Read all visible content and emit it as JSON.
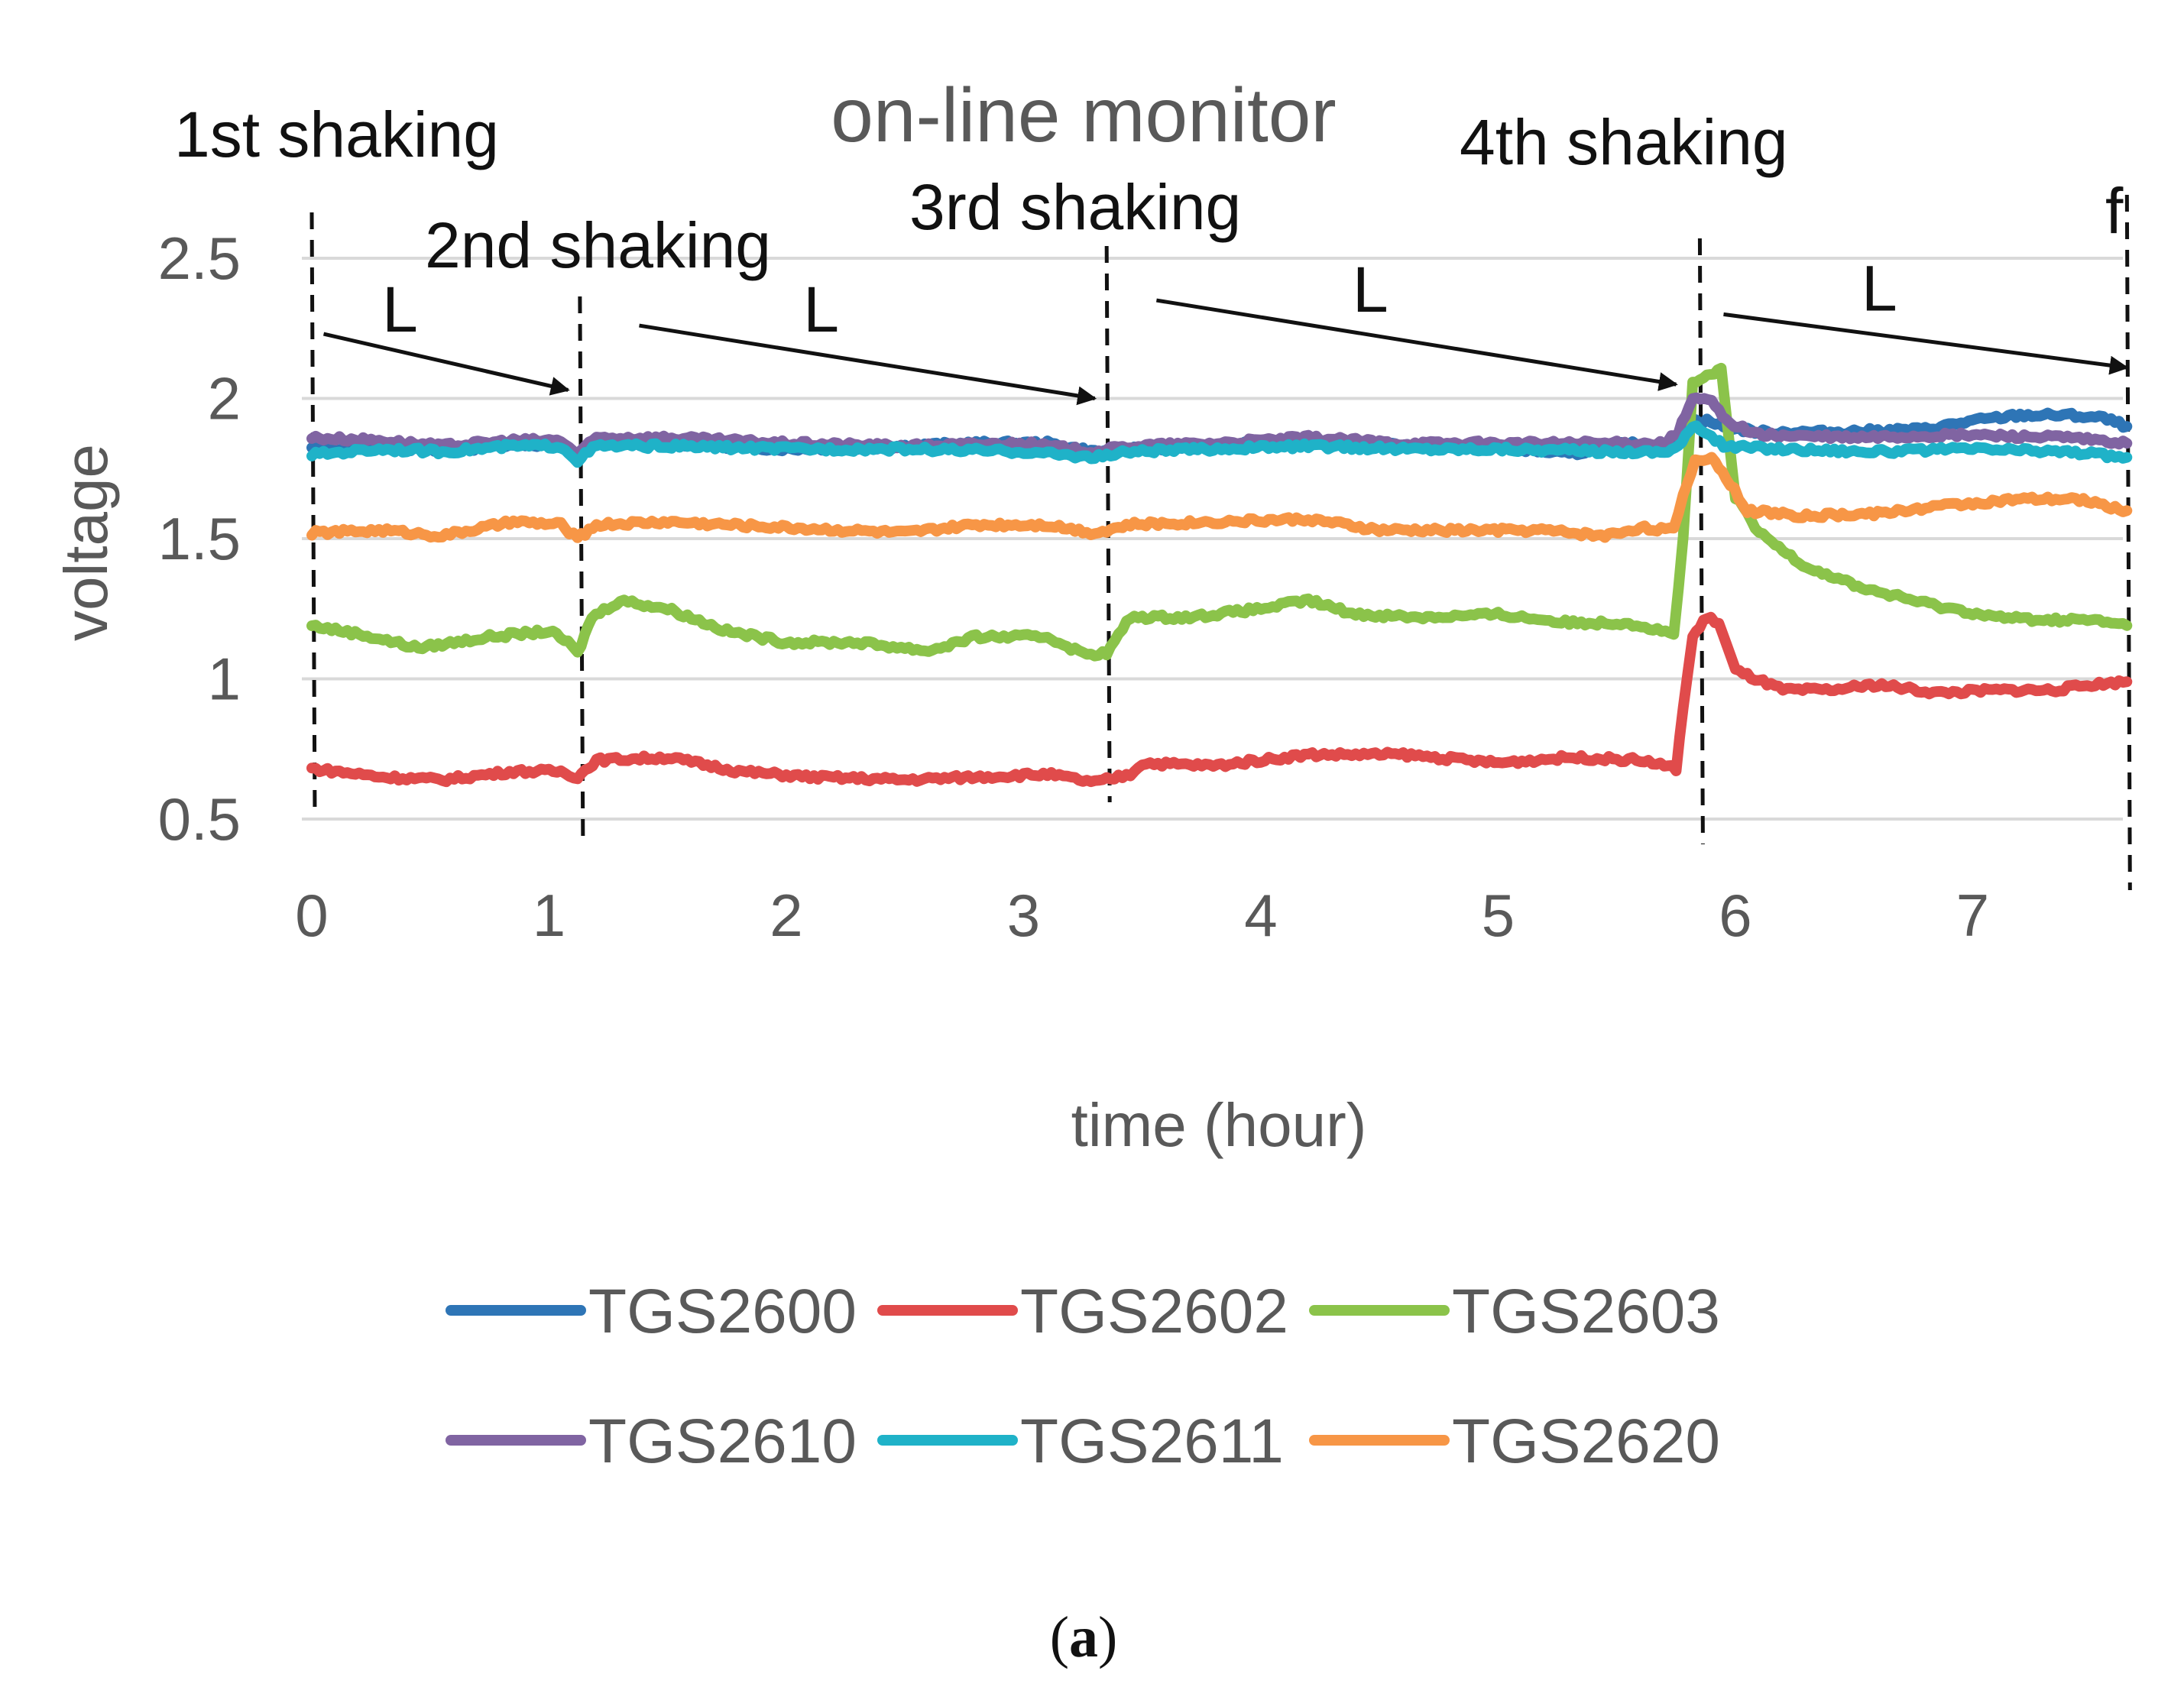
{
  "chart_data": {
    "type": "line",
    "title": "on-line monitor",
    "xlabel": "time (hour)",
    "ylabel": "voltage",
    "xlim": [
      0,
      7.65
    ],
    "ylim": [
      0.5,
      2.5
    ],
    "x_ticks": [
      "0",
      "1",
      "2",
      "3",
      "4",
      "5",
      "6",
      "7"
    ],
    "y_ticks": [
      "0.5",
      "1",
      "1.5",
      "2",
      "2.5"
    ],
    "y_tick_values": [
      0.5,
      1,
      1.5,
      2,
      2.5
    ],
    "x_tick_values": [
      0,
      1,
      2,
      3,
      4,
      5,
      6,
      7
    ],
    "grid": true,
    "legend_position": "bottom",
    "caption": "(a)",
    "caption_inner": "a",
    "shakings": [
      {
        "label": "1st shaking",
        "time": 0
      },
      {
        "label": "2nd shaking",
        "time": 1.13
      },
      {
        "label": "3rd shaking",
        "time": 3.35
      },
      {
        "label": "4th shaking",
        "time": 5.85
      }
    ],
    "end_marker": {
      "label": "f",
      "time": 7.65
    },
    "arrow_label": "L",
    "arrows": [
      {
        "from": [
          0.05,
          2.23
        ],
        "to": [
          1.08,
          2.03
        ],
        "label": "L"
      },
      {
        "from": [
          1.38,
          2.26
        ],
        "to": [
          3.3,
          2.0
        ],
        "label": "L"
      },
      {
        "from": [
          3.56,
          2.35
        ],
        "to": [
          5.75,
          2.05
        ],
        "label": "L"
      },
      {
        "from": [
          5.95,
          2.3
        ],
        "to": [
          7.65,
          2.11
        ],
        "label": "L"
      }
    ],
    "series": [
      {
        "name": "TGS2600",
        "color": "#2E75B6",
        "points": [
          [
            0,
            1.82
          ],
          [
            0.3,
            1.83
          ],
          [
            0.55,
            1.81
          ],
          [
            0.85,
            1.84
          ],
          [
            1.05,
            1.83
          ],
          [
            1.12,
            1.79
          ],
          [
            1.2,
            1.84
          ],
          [
            1.5,
            1.84
          ],
          [
            2.0,
            1.82
          ],
          [
            2.5,
            1.83
          ],
          [
            2.8,
            1.84
          ],
          [
            3.1,
            1.84
          ],
          [
            3.3,
            1.81
          ],
          [
            3.45,
            1.82
          ],
          [
            3.8,
            1.83
          ],
          [
            4.2,
            1.85
          ],
          [
            4.6,
            1.83
          ],
          [
            5.0,
            1.83
          ],
          [
            5.3,
            1.8
          ],
          [
            5.55,
            1.84
          ],
          [
            5.7,
            1.82
          ],
          [
            5.76,
            1.85
          ],
          [
            5.8,
            1.92
          ],
          [
            5.88,
            1.92
          ],
          [
            5.95,
            1.9
          ],
          [
            6.1,
            1.88
          ],
          [
            6.4,
            1.88
          ],
          [
            6.8,
            1.89
          ],
          [
            7.0,
            1.92
          ],
          [
            7.2,
            1.94
          ],
          [
            7.4,
            1.94
          ],
          [
            7.55,
            1.93
          ],
          [
            7.65,
            1.9
          ]
        ]
      },
      {
        "name": "TGS2602",
        "color": "#E04B4B",
        "points": [
          [
            0,
            0.68
          ],
          [
            0.3,
            0.65
          ],
          [
            0.55,
            0.64
          ],
          [
            0.85,
            0.67
          ],
          [
            1.05,
            0.67
          ],
          [
            1.12,
            0.65
          ],
          [
            1.2,
            0.71
          ],
          [
            1.5,
            0.72
          ],
          [
            1.8,
            0.67
          ],
          [
            2.1,
            0.65
          ],
          [
            2.5,
            0.64
          ],
          [
            2.8,
            0.65
          ],
          [
            3.1,
            0.66
          ],
          [
            3.3,
            0.63
          ],
          [
            3.45,
            0.66
          ],
          [
            3.5,
            0.7
          ],
          [
            3.8,
            0.69
          ],
          [
            4.2,
            0.73
          ],
          [
            4.6,
            0.73
          ],
          [
            5.0,
            0.7
          ],
          [
            5.3,
            0.72
          ],
          [
            5.6,
            0.71
          ],
          [
            5.75,
            0.68
          ],
          [
            5.78,
            0.9
          ],
          [
            5.82,
            1.15
          ],
          [
            5.88,
            1.22
          ],
          [
            5.93,
            1.2
          ],
          [
            6.0,
            1.03
          ],
          [
            6.2,
            0.96
          ],
          [
            6.4,
            0.96
          ],
          [
            6.6,
            0.98
          ],
          [
            6.85,
            0.95
          ],
          [
            7.1,
            0.96
          ],
          [
            7.35,
            0.96
          ],
          [
            7.5,
            0.98
          ],
          [
            7.65,
            0.99
          ]
        ]
      },
      {
        "name": "TGS2603",
        "color": "#8BC34A",
        "points": [
          [
            0,
            1.19
          ],
          [
            0.2,
            1.16
          ],
          [
            0.45,
            1.11
          ],
          [
            0.75,
            1.15
          ],
          [
            1.0,
            1.17
          ],
          [
            1.08,
            1.13
          ],
          [
            1.12,
            1.09
          ],
          [
            1.18,
            1.22
          ],
          [
            1.3,
            1.28
          ],
          [
            1.5,
            1.25
          ],
          [
            1.75,
            1.17
          ],
          [
            2.0,
            1.13
          ],
          [
            2.3,
            1.13
          ],
          [
            2.6,
            1.1
          ],
          [
            2.8,
            1.15
          ],
          [
            3.1,
            1.15
          ],
          [
            3.25,
            1.09
          ],
          [
            3.35,
            1.09
          ],
          [
            3.45,
            1.22
          ],
          [
            3.7,
            1.22
          ],
          [
            4.0,
            1.25
          ],
          [
            4.2,
            1.28
          ],
          [
            4.4,
            1.23
          ],
          [
            4.7,
            1.22
          ],
          [
            5.0,
            1.23
          ],
          [
            5.3,
            1.2
          ],
          [
            5.55,
            1.2
          ],
          [
            5.74,
            1.16
          ],
          [
            5.78,
            1.5
          ],
          [
            5.82,
            2.05
          ],
          [
            5.88,
            2.08
          ],
          [
            5.94,
            2.1
          ],
          [
            6.0,
            1.65
          ],
          [
            6.1,
            1.52
          ],
          [
            6.3,
            1.4
          ],
          [
            6.55,
            1.32
          ],
          [
            6.85,
            1.26
          ],
          [
            7.1,
            1.22
          ],
          [
            7.3,
            1.21
          ],
          [
            7.5,
            1.21
          ],
          [
            7.65,
            1.19
          ]
        ]
      },
      {
        "name": "TGS2610",
        "color": "#8064A2",
        "points": [
          [
            0,
            1.86
          ],
          [
            0.3,
            1.85
          ],
          [
            0.55,
            1.83
          ],
          [
            0.85,
            1.85
          ],
          [
            1.05,
            1.85
          ],
          [
            1.12,
            1.8
          ],
          [
            1.2,
            1.86
          ],
          [
            1.5,
            1.86
          ],
          [
            2.0,
            1.84
          ],
          [
            2.5,
            1.83
          ],
          [
            3.0,
            1.84
          ],
          [
            3.3,
            1.81
          ],
          [
            3.45,
            1.83
          ],
          [
            3.8,
            1.84
          ],
          [
            4.2,
            1.86
          ],
          [
            4.6,
            1.84
          ],
          [
            5.0,
            1.84
          ],
          [
            5.5,
            1.84
          ],
          [
            5.7,
            1.84
          ],
          [
            5.76,
            1.88
          ],
          [
            5.82,
            2.0
          ],
          [
            5.9,
            1.99
          ],
          [
            5.96,
            1.92
          ],
          [
            6.1,
            1.87
          ],
          [
            6.5,
            1.86
          ],
          [
            7.0,
            1.87
          ],
          [
            7.4,
            1.86
          ],
          [
            7.65,
            1.84
          ]
        ]
      },
      {
        "name": "TGS2611",
        "color": "#1FB2C8",
        "points": [
          [
            0,
            1.8
          ],
          [
            0.3,
            1.82
          ],
          [
            0.55,
            1.81
          ],
          [
            0.85,
            1.83
          ],
          [
            1.05,
            1.83
          ],
          [
            1.12,
            1.78
          ],
          [
            1.2,
            1.83
          ],
          [
            1.5,
            1.83
          ],
          [
            2.0,
            1.82
          ],
          [
            2.5,
            1.82
          ],
          [
            3.0,
            1.81
          ],
          [
            3.3,
            1.79
          ],
          [
            3.45,
            1.81
          ],
          [
            3.8,
            1.82
          ],
          [
            4.2,
            1.83
          ],
          [
            4.6,
            1.82
          ],
          [
            5.0,
            1.82
          ],
          [
            5.5,
            1.81
          ],
          [
            5.7,
            1.81
          ],
          [
            5.76,
            1.83
          ],
          [
            5.82,
            1.9
          ],
          [
            5.88,
            1.88
          ],
          [
            5.95,
            1.83
          ],
          [
            6.2,
            1.82
          ],
          [
            6.6,
            1.81
          ],
          [
            7.0,
            1.82
          ],
          [
            7.4,
            1.81
          ],
          [
            7.65,
            1.79
          ]
        ]
      },
      {
        "name": "TGS2620",
        "color": "#F79646",
        "points": [
          [
            0,
            1.52
          ],
          [
            0.3,
            1.53
          ],
          [
            0.55,
            1.51
          ],
          [
            0.85,
            1.56
          ],
          [
            1.05,
            1.55
          ],
          [
            1.12,
            1.5
          ],
          [
            1.2,
            1.55
          ],
          [
            1.5,
            1.56
          ],
          [
            2.0,
            1.54
          ],
          [
            2.5,
            1.52
          ],
          [
            2.8,
            1.55
          ],
          [
            3.1,
            1.55
          ],
          [
            3.3,
            1.52
          ],
          [
            3.45,
            1.55
          ],
          [
            3.8,
            1.56
          ],
          [
            4.2,
            1.57
          ],
          [
            4.5,
            1.53
          ],
          [
            4.9,
            1.53
          ],
          [
            5.2,
            1.53
          ],
          [
            5.45,
            1.51
          ],
          [
            5.6,
            1.54
          ],
          [
            5.74,
            1.53
          ],
          [
            5.78,
            1.65
          ],
          [
            5.83,
            1.78
          ],
          [
            5.9,
            1.79
          ],
          [
            5.96,
            1.72
          ],
          [
            6.05,
            1.6
          ],
          [
            6.3,
            1.58
          ],
          [
            6.6,
            1.59
          ],
          [
            6.9,
            1.62
          ],
          [
            7.2,
            1.64
          ],
          [
            7.45,
            1.64
          ],
          [
            7.65,
            1.6
          ]
        ]
      }
    ]
  }
}
